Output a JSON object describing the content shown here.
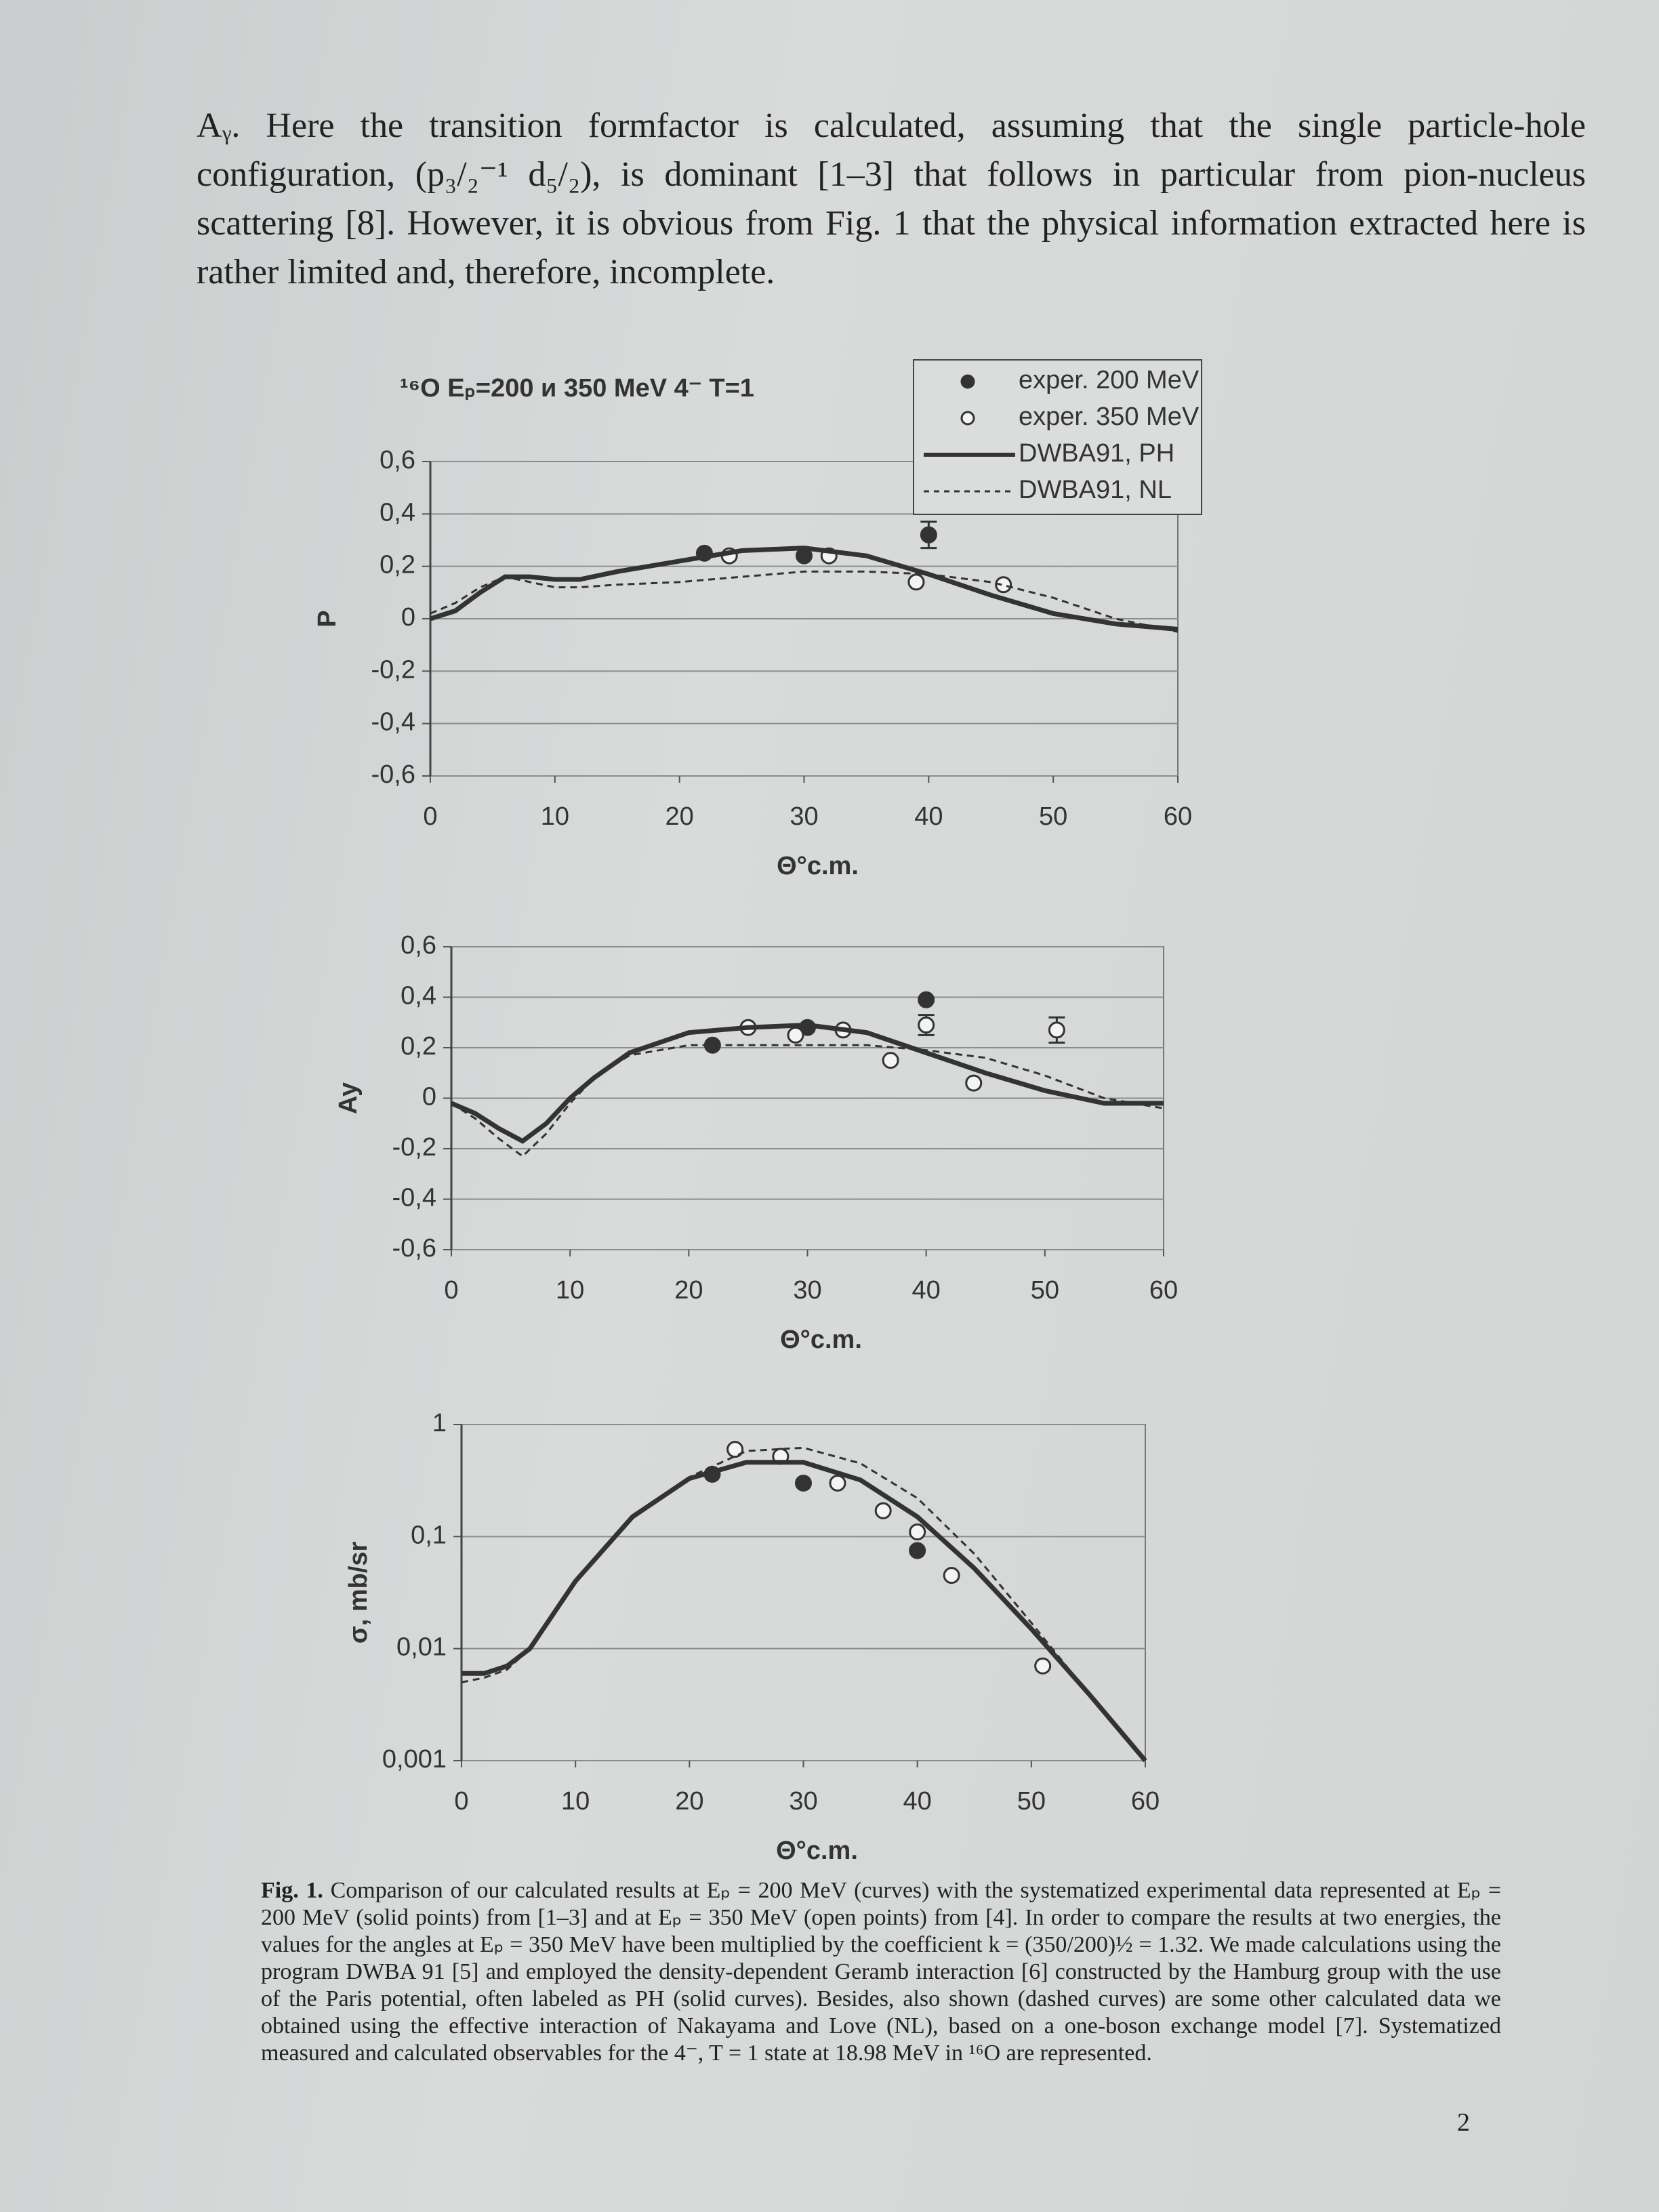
{
  "paragraph": "Aᵧ. Here the transition formfactor is calculated, assuming that the single particle-hole configuration, (p₃/₂⁻¹ d₅/₂), is dominant [1–3] that follows in particular from pion-nucleus scattering [8]. However, it is obvious from Fig. 1 that the physical information extracted here is rather limited and, therefore, incomplete.",
  "chart_data": [
    {
      "type": "line",
      "title": "¹⁶O Eₚ=200 и 350 MeV 4⁻ T=1",
      "x_label": "Θ°c.m.",
      "y_label": "P",
      "xlim": [
        0,
        60
      ],
      "xticks": [
        0,
        10,
        20,
        30,
        40,
        50,
        60
      ],
      "ylim": [
        -0.6,
        0.6
      ],
      "yticks": [
        {
          "value": 0.6,
          "label": "0,6"
        },
        {
          "value": 0.4,
          "label": "0,4"
        },
        {
          "value": 0.2,
          "label": "0,2"
        },
        0,
        {
          "value": -0.2,
          "label": "-0,2"
        },
        {
          "value": -0.4,
          "label": "-0,4"
        },
        {
          "value": -0.6,
          "label": "-0,6"
        }
      ],
      "grid": true,
      "legend": "upper right",
      "series": [
        {
          "name": "exper. 200 MeV",
          "color": "#333333",
          "marker": "filled",
          "x": [
            22,
            30,
            40
          ],
          "values": [
            0.25,
            0.24,
            0.32
          ],
          "errors": [
            null,
            null,
            0.05
          ]
        },
        {
          "name": "exper. 350 MeV",
          "color": "#333333",
          "marker": "open",
          "x": [
            24,
            32,
            39,
            46
          ],
          "values": [
            0.24,
            0.24,
            0.14,
            0.13
          ]
        },
        {
          "name": "DWBA91, PH",
          "color": "#333333",
          "line": "solid",
          "x": [
            0,
            2,
            4,
            6,
            8,
            10,
            12,
            15,
            20,
            25,
            30,
            35,
            40,
            45,
            50,
            55,
            60
          ],
          "values": [
            0,
            0.03,
            0.1,
            0.16,
            0.16,
            0.15,
            0.15,
            0.18,
            0.22,
            0.26,
            0.27,
            0.24,
            0.17,
            0.09,
            0.02,
            -0.02,
            -0.04
          ]
        },
        {
          "name": "DWBA91, NL",
          "color": "#333333",
          "line": "dashed",
          "x": [
            0,
            2,
            4,
            6,
            8,
            10,
            12,
            15,
            20,
            25,
            30,
            35,
            40,
            45,
            50,
            55,
            60
          ],
          "values": [
            0.02,
            0.06,
            0.12,
            0.16,
            0.14,
            0.12,
            0.12,
            0.13,
            0.14,
            0.16,
            0.18,
            0.18,
            0.17,
            0.14,
            0.08,
            0,
            -0.05
          ]
        }
      ]
    },
    {
      "type": "line",
      "x_label": "Θ°c.m.",
      "y_label": "Ay",
      "xlim": [
        0,
        60
      ],
      "xticks": [
        0,
        10,
        20,
        30,
        40,
        50,
        60
      ],
      "ylim": [
        -0.6,
        0.6
      ],
      "yticks": [
        {
          "value": 0.6,
          "label": "0,6"
        },
        {
          "value": 0.4,
          "label": "0,4"
        },
        {
          "value": 0.2,
          "label": "0,2"
        },
        0,
        {
          "value": -0.2,
          "label": "-0,2"
        },
        {
          "value": -0.4,
          "label": "-0,4"
        },
        {
          "value": -0.6,
          "label": "-0,6"
        }
      ],
      "grid": true,
      "series": [
        {
          "color": "#333333",
          "marker": "filled",
          "x": [
            22,
            30,
            40
          ],
          "values": [
            0.21,
            0.28,
            0.39
          ]
        },
        {
          "color": "#333333",
          "marker": "open",
          "x": [
            25,
            29,
            33,
            37,
            40,
            44,
            51
          ],
          "values": [
            0.28,
            0.25,
            0.27,
            0.15,
            0.29,
            0.06,
            0.27
          ],
          "errors": [
            null,
            null,
            null,
            null,
            0.04,
            null,
            0.05
          ]
        },
        {
          "color": "#333333",
          "line": "solid",
          "x": [
            0,
            2,
            4,
            6,
            8,
            10,
            12,
            15,
            20,
            25,
            30,
            35,
            40,
            45,
            50,
            55,
            60
          ],
          "values": [
            -0.02,
            -0.06,
            -0.12,
            -0.17,
            -0.1,
            0,
            0.08,
            0.18,
            0.26,
            0.28,
            0.29,
            0.26,
            0.18,
            0.1,
            0.03,
            -0.02,
            -0.02
          ]
        },
        {
          "color": "#333333",
          "line": "dashed",
          "x": [
            0,
            2,
            4,
            6,
            8,
            10,
            12,
            15,
            20,
            25,
            30,
            35,
            40,
            45,
            50,
            55,
            60
          ],
          "values": [
            -0.02,
            -0.08,
            -0.16,
            -0.23,
            -0.14,
            -0.02,
            0.08,
            0.17,
            0.21,
            0.21,
            0.21,
            0.21,
            0.19,
            0.16,
            0.09,
            0,
            -0.04
          ]
        }
      ]
    },
    {
      "type": "line",
      "x_label": "Θ°c.m.",
      "y_label": "σ, mb/sr",
      "log": true,
      "xlim": [
        0,
        60
      ],
      "xticks": [
        0,
        10,
        20,
        30,
        40,
        50,
        60
      ],
      "ylim": [
        0.001,
        1
      ],
      "yticks": [
        1,
        {
          "value": 0.1,
          "label": "0,1"
        },
        {
          "value": 0.01,
          "label": "0,01"
        },
        {
          "value": 0.001,
          "label": "0,001"
        }
      ],
      "grid": true,
      "series": [
        {
          "color": "#333333",
          "marker": "filled",
          "x": [
            22,
            30,
            40
          ],
          "values": [
            0.36,
            0.3,
            0.075
          ]
        },
        {
          "color": "#333333",
          "marker": "open",
          "x": [
            24,
            28,
            33,
            37,
            40,
            43,
            51
          ],
          "values": [
            0.6,
            0.52,
            0.3,
            0.17,
            0.11,
            0.045,
            0.007
          ]
        },
        {
          "color": "#333333",
          "line": "solid",
          "x": [
            0,
            2,
            4,
            6,
            8,
            10,
            15,
            20,
            25,
            30,
            35,
            40,
            45,
            50,
            55,
            60
          ],
          "values": [
            0.006,
            0.006,
            0.007,
            0.01,
            0.02,
            0.04,
            0.15,
            0.33,
            0.46,
            0.46,
            0.32,
            0.15,
            0.052,
            0.015,
            0.004,
            0.001
          ]
        },
        {
          "color": "#333333",
          "line": "dashed",
          "x": [
            0,
            2,
            4,
            6,
            8,
            10,
            15,
            20,
            25,
            30,
            35,
            40,
            45,
            50,
            55,
            60
          ],
          "values": [
            0.005,
            0.0055,
            0.0065,
            0.01,
            0.02,
            0.04,
            0.15,
            0.34,
            0.58,
            0.62,
            0.45,
            0.22,
            0.07,
            0.017,
            0.004,
            0.001
          ]
        }
      ]
    }
  ],
  "caption": {
    "label": "Fig. 1.",
    "text": "Comparison of our calculated results at Eₚ = 200 MeV (curves) with the systematized experimental data represented at Eₚ = 200 MeV (solid points) from [1–3] and at Eₚ = 350 MeV (open points) from [4]. In order to compare the results at two energies, the values for the angles at Eₚ = 350 MeV have been multiplied by the coefficient k = (350/200)½ = 1.32. We made calculations using the program DWBA 91 [5] and employed the density-dependent Geramb interaction [6] constructed by the Hamburg group with the use of the Paris potential, often labeled as PH (solid curves). Besides, also shown (dashed curves) are some other calculated data we obtained using the effective interaction of Nakayama and Love (NL), based on a one-boson exchange model [7]. Systematized measured and calculated observables for the 4⁻, T = 1 state at 18.98 MeV in ¹⁶O are represented."
  },
  "page_number": "2"
}
